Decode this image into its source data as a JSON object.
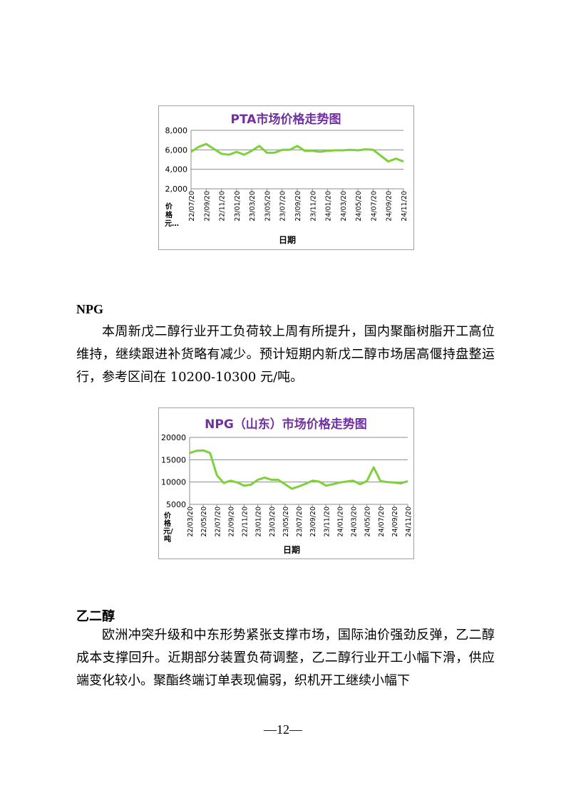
{
  "charts_colors": {
    "line": "#7dd13a",
    "title": "#7030a0",
    "grid": "#8c8c8c"
  },
  "sections": [
    {
      "heading": "NPG",
      "paragraph": "本周新戊二醇行业开工负荷较上周有所提升，国内聚酯树脂开工高位维持，继续跟进补货略有减少。预计短期内新戊二醇市场居高偃持盘整运行，参考区间在 10200-10300 元/吨。"
    },
    {
      "heading": "乙二醇",
      "paragraph": "欧洲冲突升级和中东形势紧张支撑市场，国际油价强劲反弹，乙二醇成本支撑回升。近期部分装置负荷调整，乙二醇行业开工小幅下滑，供应端变化较小。聚酯终端订单表现偏弱，织机开工继续小幅下"
    }
  ],
  "page_number": "—12—",
  "chart_data": [
    {
      "type": "line",
      "title": "PTA市场价格走势图",
      "xlabel": "日期",
      "ylabel": "价格元…",
      "ylim": [
        2000,
        8000
      ],
      "yticks": [
        "2,000",
        "4,000",
        "6,000",
        "8,000"
      ],
      "ytick_values": [
        2000,
        4000,
        6000,
        8000
      ],
      "xticks": [
        "22/07/20",
        "22/09/20",
        "22/11/20",
        "23/01/20",
        "23/03/20",
        "23/05/20",
        "23/07/20",
        "23/09/20",
        "23/11/20",
        "24/01/20",
        "24/03/20",
        "24/05/20",
        "24/07/20",
        "24/09/20",
        "24/11/20"
      ],
      "x": [
        "22/07",
        "22/08",
        "22/09",
        "22/10",
        "22/11",
        "22/12",
        "23/01",
        "23/02",
        "23/03",
        "23/04",
        "23/05",
        "23/06",
        "23/07",
        "23/08",
        "23/09",
        "23/10",
        "23/11",
        "23/12",
        "24/01",
        "24/02",
        "24/03",
        "24/04",
        "24/05",
        "24/06",
        "24/07",
        "24/08",
        "24/09",
        "24/10",
        "24/11"
      ],
      "values": [
        5800,
        6300,
        6600,
        6100,
        5600,
        5500,
        5800,
        5500,
        5900,
        6400,
        5700,
        5700,
        6000,
        6000,
        6400,
        5900,
        5900,
        5800,
        5900,
        5950,
        5950,
        6000,
        5950,
        6050,
        6000,
        5400,
        4800,
        5100,
        4800
      ],
      "grid": true,
      "legend": "none"
    },
    {
      "type": "line",
      "title": "NPG（山东）市场价格走势图",
      "xlabel": "日期",
      "ylabel": "价格元/吨",
      "ylim": [
        5000,
        20000
      ],
      "yticks": [
        "5000",
        "10000",
        "15000",
        "20000"
      ],
      "ytick_values": [
        5000,
        10000,
        15000,
        20000
      ],
      "xticks": [
        "22/03/20",
        "22/05/20",
        "22/07/20",
        "22/09/20",
        "22/11/20",
        "23/01/20",
        "23/03/20",
        "23/05/20",
        "23/07/20",
        "23/09/20",
        "23/11/20",
        "24/01/20",
        "24/03/20",
        "24/05/20",
        "24/07/20",
        "24/09/20",
        "24/11/20"
      ],
      "x": [
        "22/03",
        "22/04",
        "22/05",
        "22/06",
        "22/07",
        "22/08",
        "22/09",
        "22/10",
        "22/11",
        "22/12",
        "23/01",
        "23/02",
        "23/03",
        "23/04",
        "23/05",
        "23/06",
        "23/07",
        "23/08",
        "23/09",
        "23/10",
        "23/11",
        "23/12",
        "24/01",
        "24/02",
        "24/03",
        "24/04",
        "24/05",
        "24/06",
        "24/07",
        "24/08",
        "24/09",
        "24/10",
        "24/11"
      ],
      "values": [
        16500,
        17000,
        17100,
        16500,
        11500,
        9800,
        10300,
        9900,
        9200,
        9400,
        10500,
        11000,
        10500,
        10500,
        9500,
        8500,
        9000,
        9600,
        10300,
        10100,
        9200,
        9500,
        9900,
        10100,
        10300,
        9500,
        10200,
        13300,
        10200,
        10000,
        9900,
        9700,
        10200
      ],
      "grid": true,
      "legend": "none"
    }
  ]
}
